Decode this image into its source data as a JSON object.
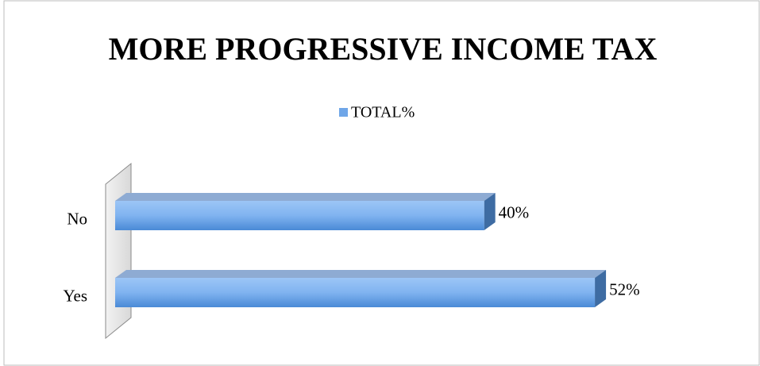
{
  "chart_data": {
    "type": "bar",
    "orientation": "horizontal",
    "title": "MORE PROGRESSIVE INCOME TAX",
    "categories": [
      "No",
      "Yes"
    ],
    "series": [
      {
        "name": "TOTAL%",
        "color": "#6fa6e8",
        "values": [
          40,
          52
        ],
        "value_labels": [
          "40%",
          "52%"
        ]
      }
    ],
    "xlim": [
      0,
      60
    ],
    "legend": "top"
  }
}
